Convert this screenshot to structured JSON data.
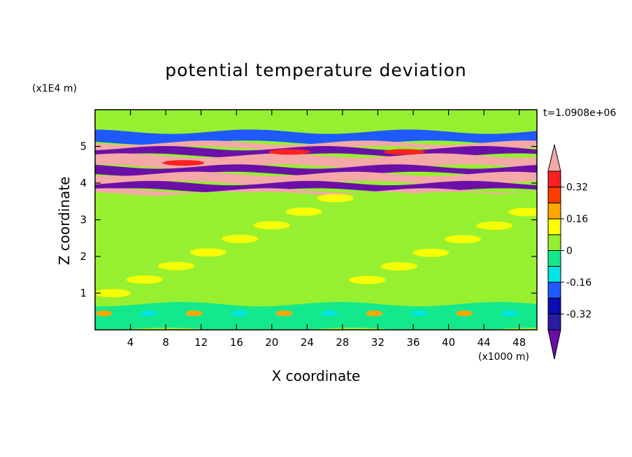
{
  "chart_data": {
    "type": "heatmap",
    "title": "potential temperature deviation",
    "xlabel": "X coordinate",
    "ylabel": "Z coordinate",
    "x_unit": "(x1000 m)",
    "y_unit": "(x1E4 m)",
    "time_label": "t=1.0908e+06",
    "xlim": [
      0,
      50
    ],
    "ylim": [
      0,
      6
    ],
    "x_ticks": [
      4,
      8,
      12,
      16,
      20,
      24,
      28,
      32,
      36,
      40,
      44,
      48
    ],
    "y_ticks": [
      1,
      2,
      3,
      4,
      5
    ],
    "colorbar": {
      "levels": [
        -0.4,
        -0.32,
        -0.24,
        -0.16,
        -0.08,
        0,
        0.08,
        0.16,
        0.24,
        0.32,
        0.4
      ],
      "labels": [
        "0.32",
        "0.16",
        "0",
        "-0.16",
        "-0.32"
      ],
      "label_values": [
        0.32,
        0.16,
        0,
        -0.16,
        -0.32
      ],
      "colors_low_to_high": [
        "#6b0fa8",
        "#2a1ca0",
        "#0c0cb4",
        "#1e5aff",
        "#00e6e6",
        "#14e88c",
        "#96f030",
        "#ffff00",
        "#ffa500",
        "#ff3c00",
        "#ff2020",
        "#f4a8a8"
      ],
      "extend": "both"
    },
    "bands": [
      {
        "z": [
          5.4,
          6.0
        ],
        "value": 0.02
      },
      {
        "z": [
          5.1,
          5.4
        ],
        "value": -0.2
      },
      {
        "z": [
          4.95,
          5.1
        ],
        "value": 0.45
      },
      {
        "z": [
          4.75,
          4.95
        ],
        "value": -0.42
      },
      {
        "z": [
          4.45,
          4.75
        ],
        "value": 0.45
      },
      {
        "z": [
          4.25,
          4.45
        ],
        "value": -0.45
      },
      {
        "z": [
          4.0,
          4.25
        ],
        "value": 0.45
      },
      {
        "z": [
          3.8,
          4.0
        ],
        "value": -0.45
      },
      {
        "z": [
          3.7,
          3.8
        ],
        "value": 0.45
      },
      {
        "z": [
          0.7,
          3.7
        ],
        "value": 0.02
      },
      {
        "z": [
          0.0,
          0.7
        ],
        "value": -0.05
      }
    ]
  }
}
